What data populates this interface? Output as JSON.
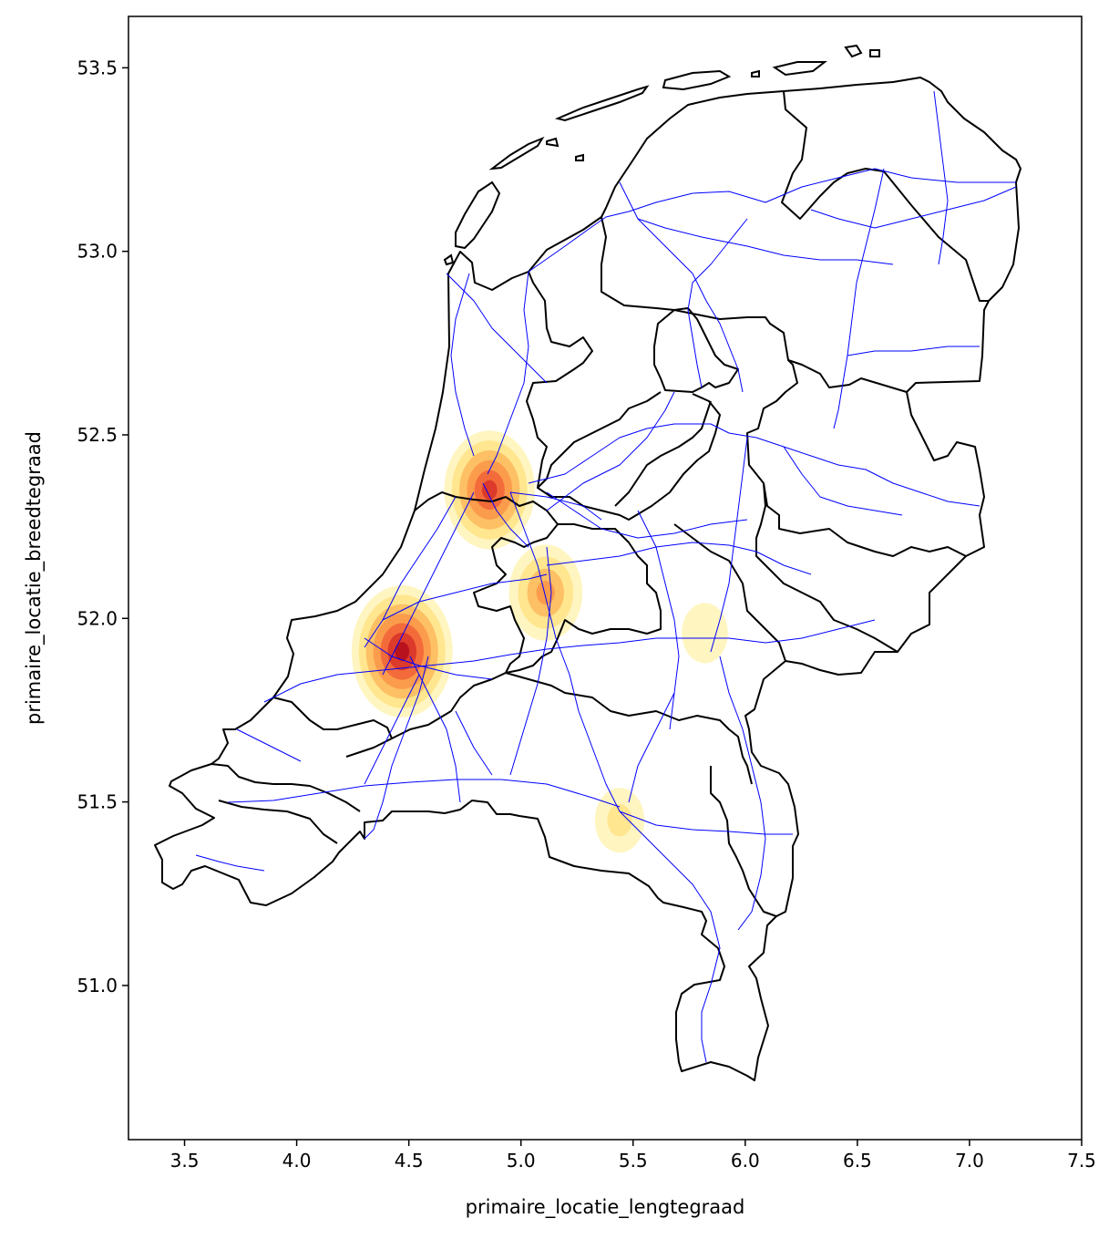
{
  "chart_data": {
    "type": "heatmap",
    "subtype": "kde-density-map-with-road-network",
    "xlabel": "primaire_locatie_lengtegraad",
    "ylabel": "primaire_locatie_breedtegraad",
    "xlim": [
      3.25,
      7.5
    ],
    "ylim": [
      50.58,
      53.64
    ],
    "xticks": [
      3.5,
      4.0,
      4.5,
      5.0,
      5.5,
      6.0,
      6.5,
      7.0,
      7.5
    ],
    "xtick_labels": [
      "3.5",
      "4.0",
      "4.5",
      "5.0",
      "5.5",
      "6.0",
      "6.5",
      "7.0",
      "7.5"
    ],
    "yticks": [
      51.0,
      51.5,
      52.0,
      52.5,
      53.0,
      53.5
    ],
    "ytick_labels": [
      "51.0",
      "51.5",
      "52.0",
      "52.5",
      "53.0",
      "53.5"
    ],
    "colormap": [
      "#fff5c0",
      "#ffe68f",
      "#fdc064",
      "#fb9c4c",
      "#f36b3b",
      "#dc3a2a",
      "#b8121f"
    ],
    "border_color": "#000000",
    "road_color": "#0000ff",
    "hotspots": [
      {
        "lon": 4.47,
        "lat": 51.91,
        "intensity": 1.0
      },
      {
        "lon": 4.86,
        "lat": 52.35,
        "intensity": 0.85
      },
      {
        "lon": 5.11,
        "lat": 52.07,
        "intensity": 0.6
      },
      {
        "lon": 5.44,
        "lat": 51.45,
        "intensity": 0.25
      },
      {
        "lon": 5.82,
        "lat": 51.96,
        "intensity": 0.2
      }
    ]
  }
}
